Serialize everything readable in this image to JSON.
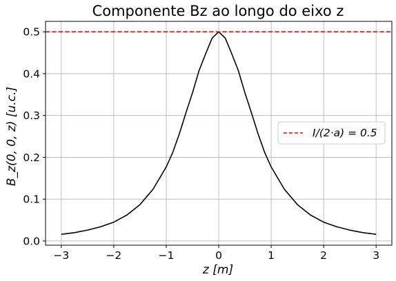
{
  "chart_data": {
    "type": "line",
    "title": "Componente Bz ao longo do eixo z",
    "xlabel": "z [m]",
    "ylabel": "B_z(0, 0, z) [u.c.]",
    "xlim": [
      -3.3,
      3.3
    ],
    "ylim": [
      -0.01,
      0.525
    ],
    "xticks": [
      -3,
      -2,
      -1,
      0,
      1,
      2,
      3
    ],
    "xtick_labels": [
      "−3",
      "−2",
      "−1",
      "0",
      "1",
      "2",
      "3"
    ],
    "yticks": [
      0.0,
      0.1,
      0.2,
      0.3,
      0.4,
      0.5
    ],
    "ytick_labels": [
      "0.0",
      "0.1",
      "0.2",
      "0.3",
      "0.4",
      "0.5"
    ],
    "grid": true,
    "legend_position": "center-right",
    "series": [
      {
        "name": "",
        "style": "solid",
        "color": "#000000",
        "x": [
          -3.0,
          -2.75,
          -2.5,
          -2.25,
          -2.0,
          -1.75,
          -1.5,
          -1.25,
          -1.0,
          -0.875,
          -0.75,
          -0.625,
          -0.5,
          -0.375,
          -0.25,
          -0.125,
          0.0,
          0.125,
          0.25,
          0.375,
          0.5,
          0.625,
          0.75,
          0.875,
          1.0,
          1.25,
          1.5,
          1.75,
          2.0,
          2.25,
          2.5,
          2.75,
          3.0
        ],
        "y": [
          0.016,
          0.02,
          0.026,
          0.034,
          0.045,
          0.062,
          0.087,
          0.124,
          0.177,
          0.212,
          0.256,
          0.306,
          0.354,
          0.407,
          0.447,
          0.485,
          0.5,
          0.485,
          0.447,
          0.407,
          0.354,
          0.306,
          0.256,
          0.212,
          0.177,
          0.124,
          0.087,
          0.062,
          0.045,
          0.034,
          0.026,
          0.02,
          0.016
        ]
      },
      {
        "name": "I/(2·a) = 0.5",
        "style": "dashed",
        "color": "#ff0000",
        "x": [
          -3.3,
          3.3
        ],
        "y": [
          0.5,
          0.5
        ]
      }
    ]
  },
  "colors": {
    "curve": "#000000",
    "reference_line": "#ff0000",
    "grid": "#b0b0b0"
  }
}
